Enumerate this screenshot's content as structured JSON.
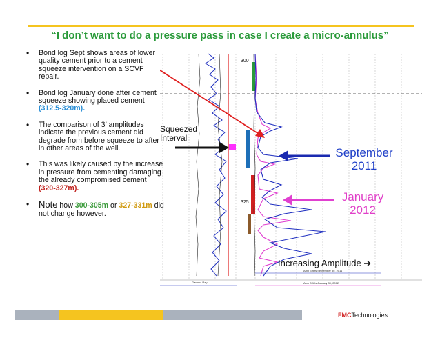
{
  "slide": {
    "title": "“I don’t want to do a pressure pass in case I create a micro-annulus”",
    "bullets": [
      {
        "parts": [
          {
            "text": "Bond log Sept shows areas of lower quality cement prior to a cement squeeze intervention  on a SCVF repair.",
            "style": ""
          }
        ]
      },
      {
        "parts": [
          {
            "text": "Bond log January done after cement squeeze showing placed cement ",
            "style": ""
          },
          {
            "text": "(312.5-320m).",
            "style": "blue"
          }
        ]
      },
      {
        "parts": [
          {
            "text": "The comparison of 3’ amplitudes indicate the previous cement did degrade from before squeeze to after in other areas of the well.",
            "style": ""
          }
        ]
      },
      {
        "parts": [
          {
            "text": "This was likely caused by the increase in pressure from cementing damaging the already compromised cement ",
            "style": ""
          },
          {
            "text": "(320-327m).",
            "style": "red"
          }
        ]
      },
      {
        "parts": [
          {
            "text": "Note",
            "style": "note-word"
          },
          {
            "text": " how ",
            "style": ""
          },
          {
            "text": "300-305m",
            "style": "green"
          },
          {
            "text": "  or ",
            "style": ""
          },
          {
            "text": "327-331m",
            "style": "orange"
          },
          {
            "text": " did not change however.",
            "style": ""
          }
        ]
      }
    ]
  },
  "log": {
    "depth_labels": [
      "300",
      "325"
    ],
    "squeezed_label": "Squeezed Interval",
    "september_label": "September 2011",
    "january_label": "January 2012",
    "increasing_label": "Increasing Amplitude ➔",
    "track_labels": [
      "Gamma Ray",
      "Amp 3 ft/fs September 30, 2011",
      "Amp 3 ft/fs January 30, 2012"
    ],
    "colors": {
      "sept_curve": "#2030c0",
      "jan_curve": "#e040d0",
      "arrow_red": "#e02020"
    }
  },
  "footer": {
    "logo_fmc": "FMC",
    "logo_tech": "Technologies"
  }
}
